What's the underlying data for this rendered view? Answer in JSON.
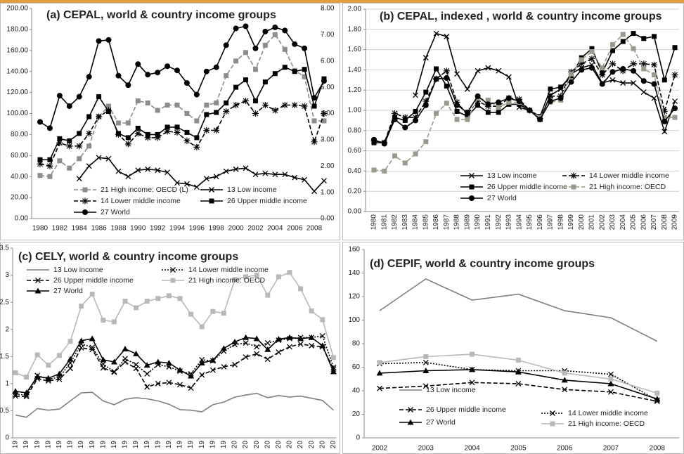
{
  "chart_data": [
    {
      "type": "line",
      "title": "(a) CEPAL, world & country income groups",
      "categories": [
        "1980",
        null,
        "1982",
        null,
        "1984",
        null,
        "1986",
        null,
        "1988",
        null,
        "1990",
        null,
        "1992",
        null,
        "1994",
        null,
        "1996",
        null,
        "1998",
        null,
        "2000",
        null,
        "2002",
        null,
        "2004",
        null,
        "2006",
        null,
        "2008",
        null
      ],
      "ylim": [
        0,
        200
      ],
      "yticks": [
        {
          "value": 0,
          "label": "0.00"
        },
        {
          "value": 20,
          "label": "20.00"
        },
        {
          "value": 40,
          "label": "40.00"
        },
        {
          "value": 60,
          "label": "60.00"
        },
        {
          "value": 80,
          "label": "80.00"
        },
        {
          "value": 100,
          "label": "100.00"
        },
        {
          "value": 120,
          "label": "120.00"
        },
        {
          "value": 140,
          "label": "140.00"
        },
        {
          "value": 160,
          "label": "160.00"
        },
        {
          "value": 180,
          "label": "180.00"
        },
        {
          "value": 200,
          "label": "200.00"
        }
      ],
      "y2lim": [
        0,
        8
      ],
      "y2ticks": [
        {
          "value": 0,
          "label": "0.00"
        },
        {
          "value": 1,
          "label": "1.00"
        },
        {
          "value": 2,
          "label": "2.00"
        },
        {
          "value": 3,
          "label": "3.00"
        },
        {
          "value": 4,
          "label": "4.00"
        },
        {
          "value": 5,
          "label": "5.00"
        },
        {
          "value": 6,
          "label": "6.00"
        },
        {
          "value": 7,
          "label": "7.00"
        },
        {
          "value": 8,
          "label": "8.00"
        }
      ],
      "grid": false,
      "series": [
        {
          "name": "21 High income: OECD (L)",
          "color": "#8c8c8c",
          "marker": "square",
          "dash": "dashed",
          "values": [
            41,
            40,
            55,
            48,
            57,
            69,
            97,
            107,
            91,
            91,
            112,
            110,
            103,
            108,
            108,
            100,
            93,
            108,
            110,
            136,
            150,
            158,
            142,
            165,
            175,
            161,
            141,
            135,
            93,
            93
          ]
        },
        {
          "name": "13 Low income",
          "color": "#000000",
          "marker": "x",
          "dash": "solid",
          "axis": "y2",
          "values": [
            null,
            null,
            null,
            null,
            1.52,
            2.0,
            2.32,
            2.28,
            1.8,
            1.6,
            1.84,
            1.88,
            1.84,
            1.76,
            1.36,
            1.32,
            1.2,
            1.52,
            1.6,
            1.8,
            1.88,
            1.92,
            1.68,
            1.72,
            1.68,
            1.68,
            1.56,
            1.48,
            1.04,
            1.44
          ]
        },
        {
          "name": "14 Lower middle income",
          "color": "#000000",
          "marker": "star",
          "dash": "dashed",
          "axis": "y2",
          "values": [
            2.08,
            2.0,
            2.88,
            2.76,
            2.76,
            3.24,
            3.88,
            4.12,
            3.2,
            2.84,
            3.24,
            3.08,
            3.08,
            3.32,
            3.28,
            2.96,
            2.72,
            3.36,
            3.36,
            4.08,
            4.32,
            4.48,
            4.0,
            4.32,
            4.12,
            4.32,
            4.32,
            4.28,
            2.92,
            4.0
          ]
        },
        {
          "name": "26 Upper middle income",
          "color": "#000000",
          "marker": "square",
          "dash": "solid",
          "axis": "y2",
          "values": [
            2.24,
            2.24,
            3.04,
            2.96,
            3.24,
            3.88,
            4.64,
            4.08,
            3.24,
            3.08,
            3.44,
            3.2,
            3.2,
            3.48,
            3.48,
            3.28,
            3.08,
            3.96,
            4.04,
            4.4,
            5.0,
            5.28,
            4.48,
            5.2,
            5.52,
            5.76,
            5.6,
            5.68,
            4.28,
            5.32
          ]
        },
        {
          "name": "27 World",
          "color": "#000000",
          "marker": "circle",
          "dash": "solid",
          "axis": "y2",
          "values": [
            3.68,
            3.44,
            4.68,
            4.28,
            4.64,
            5.4,
            6.76,
            6.8,
            5.44,
            5.08,
            5.88,
            5.48,
            5.56,
            5.8,
            5.64,
            5.16,
            4.72,
            5.6,
            5.76,
            6.6,
            7.24,
            7.32,
            6.48,
            7.12,
            7.28,
            7.16,
            6.64,
            6.48,
            4.6,
            5.24
          ]
        }
      ]
    },
    {
      "type": "line",
      "title": "(b) CEPAL, indexed , world & country income groups",
      "categories": [
        "1980",
        "1981",
        "1982",
        "1983",
        "1984",
        "1985",
        "1986",
        "1987",
        "1988",
        "1989",
        "1990",
        "1991",
        "1992",
        "1993",
        "1994",
        "1995",
        "1996",
        "1997",
        "1998",
        "1999",
        "2000",
        "2001",
        "2002",
        "2003",
        "2004",
        "2005",
        "2006",
        "2007",
        "2008",
        "2009"
      ],
      "ylim": [
        0,
        2
      ],
      "yticks": [
        {
          "value": 0,
          "label": "0.00"
        },
        {
          "value": 0.2,
          "label": "0.20"
        },
        {
          "value": 0.4,
          "label": "0.40"
        },
        {
          "value": 0.6,
          "label": "0.60"
        },
        {
          "value": 0.8,
          "label": "0.80"
        },
        {
          "value": 1,
          "label": "1.00"
        },
        {
          "value": 1.2,
          "label": "1.20"
        },
        {
          "value": 1.4,
          "label": "1.40"
        },
        {
          "value": 1.6,
          "label": "1.60"
        },
        {
          "value": 1.8,
          "label": "1.80"
        },
        {
          "value": 2,
          "label": "2.00"
        }
      ],
      "grid": true,
      "series": [
        {
          "name": "13 Low income",
          "color": "#000000",
          "marker": "x",
          "dash": "solid",
          "values": [
            null,
            null,
            null,
            null,
            1.15,
            1.52,
            1.76,
            1.73,
            1.36,
            1.21,
            1.39,
            1.42,
            1.39,
            1.33,
            1.03,
            1.0,
            0.91,
            1.15,
            1.21,
            1.36,
            1.42,
            1.45,
            1.27,
            1.3,
            1.27,
            1.27,
            1.18,
            1.12,
            0.79,
            1.09
          ]
        },
        {
          "name": "14 Lower middle income",
          "color": "#000000",
          "marker": "star",
          "dash": "dashed",
          "values": [
            0.7,
            0.68,
            0.97,
            0.93,
            0.93,
            1.09,
            1.31,
            1.39,
            1.08,
            0.96,
            1.09,
            1.04,
            1.04,
            1.12,
            1.11,
            1.0,
            0.92,
            1.14,
            1.14,
            1.38,
            1.46,
            1.51,
            1.35,
            1.46,
            1.39,
            1.46,
            1.46,
            1.45,
            0.99,
            1.35
          ]
        },
        {
          "name": "26 Upper middle income",
          "color": "#000000",
          "marker": "square",
          "dash": "solid",
          "values": [
            0.68,
            0.68,
            0.93,
            0.9,
            0.99,
            1.18,
            1.41,
            1.24,
            0.99,
            0.94,
            1.05,
            0.98,
            0.98,
            1.06,
            1.06,
            1.0,
            0.94,
            1.21,
            1.23,
            1.34,
            1.52,
            1.61,
            1.37,
            1.59,
            1.68,
            1.76,
            1.71,
            1.73,
            1.3,
            1.62
          ]
        },
        {
          "name": "21 High income: OECD",
          "color": "#9a9a8a",
          "marker": "square",
          "dash": "dashed",
          "values": [
            0.41,
            0.4,
            0.55,
            0.48,
            0.57,
            0.69,
            0.97,
            1.07,
            0.91,
            0.91,
            1.12,
            1.1,
            1.03,
            1.08,
            1.08,
            1.0,
            0.93,
            1.08,
            1.1,
            1.36,
            1.5,
            1.58,
            1.42,
            1.65,
            1.75,
            1.61,
            1.41,
            1.35,
            0.93,
            0.93
          ]
        },
        {
          "name": "27 World",
          "color": "#000000",
          "marker": "circle",
          "dash": "solid",
          "values": [
            0.71,
            0.67,
            0.91,
            0.83,
            0.9,
            1.05,
            1.31,
            1.32,
            1.05,
            0.98,
            1.14,
            1.06,
            1.08,
            1.12,
            1.09,
            1.0,
            0.91,
            1.09,
            1.12,
            1.28,
            1.4,
            1.42,
            1.26,
            1.38,
            1.41,
            1.39,
            1.29,
            1.26,
            0.89,
            1.02
          ]
        }
      ]
    },
    {
      "type": "line",
      "title": "(c) CELY, world & country income groups",
      "categories": [
        "19",
        "19",
        "19",
        "19",
        "19",
        "19",
        "19",
        "19",
        "19",
        "19",
        "19",
        "19",
        "19",
        "19",
        "19",
        "19",
        "19",
        "19",
        "19",
        "19",
        "20",
        "20",
        "20",
        "20",
        "20",
        "20",
        "20",
        "20",
        "20",
        "20"
      ],
      "ylim": [
        0,
        3.5
      ],
      "yticks": [
        0,
        0.5,
        1,
        1.5,
        2,
        2.5,
        3,
        3.5
      ],
      "grid": false,
      "series": [
        {
          "name": "13 Low income",
          "color": "#7f7f7f",
          "marker": "none",
          "dash": "solid",
          "values": [
            0.42,
            0.38,
            0.54,
            0.51,
            0.53,
            0.68,
            0.83,
            0.84,
            0.68,
            0.61,
            0.71,
            0.74,
            0.72,
            0.68,
            0.62,
            0.52,
            0.51,
            0.48,
            0.61,
            0.66,
            0.75,
            0.79,
            0.82,
            0.74,
            0.78,
            0.75,
            0.77,
            0.73,
            0.69,
            0.51
          ]
        },
        {
          "name": "14 Lower middle income",
          "color": "#000000",
          "marker": "x",
          "dash": "dotted",
          "values": [
            0.8,
            0.79,
            1.15,
            1.08,
            1.12,
            1.38,
            1.73,
            1.67,
            1.36,
            1.22,
            1.46,
            1.35,
            1.18,
            1.35,
            1.31,
            1.23,
            1.18,
            1.44,
            1.42,
            1.6,
            1.72,
            1.75,
            1.68,
            1.75,
            1.8,
            1.83,
            1.85,
            1.85,
            1.88,
            1.3
          ]
        },
        {
          "name": "26 Upper middle income",
          "color": "#000000",
          "marker": "x",
          "dash": "dashed",
          "values": [
            0.77,
            0.76,
            1.09,
            1.05,
            1.08,
            1.28,
            1.66,
            1.63,
            1.29,
            1.21,
            1.4,
            1.28,
            0.94,
            1.0,
            1.02,
            0.98,
            0.92,
            1.16,
            1.25,
            1.31,
            1.35,
            1.49,
            1.55,
            1.45,
            1.58,
            1.68,
            1.73,
            1.7,
            1.68,
            1.27
          ]
        },
        {
          "name": "21 High income: OECD",
          "color": "#b8b8b8",
          "marker": "square",
          "dash": "solid",
          "values": [
            1.2,
            1.12,
            1.53,
            1.34,
            1.52,
            1.78,
            2.43,
            2.65,
            2.17,
            2.14,
            2.52,
            2.4,
            2.52,
            2.57,
            2.62,
            2.57,
            2.28,
            2.05,
            2.33,
            2.3,
            2.92,
            2.97,
            3.0,
            2.63,
            2.97,
            3.05,
            2.75,
            2.34,
            2.18,
            1.48
          ]
        },
        {
          "name": "27 World",
          "color": "#000000",
          "marker": "triangle",
          "dash": "solid",
          "values": [
            0.86,
            0.83,
            1.13,
            1.1,
            1.18,
            1.45,
            1.79,
            1.83,
            1.44,
            1.4,
            1.64,
            1.55,
            1.34,
            1.4,
            1.38,
            1.25,
            1.14,
            1.38,
            1.43,
            1.65,
            1.77,
            1.85,
            1.83,
            1.63,
            1.82,
            1.85,
            1.83,
            1.85,
            1.7,
            1.22
          ]
        }
      ]
    },
    {
      "type": "line",
      "title": "(d) CEPIF,  world & country income groups",
      "categories": [
        "2002",
        "2003",
        "2004",
        "2005",
        "2006",
        "2007",
        "2008"
      ],
      "ylim": [
        0,
        160
      ],
      "yticks": [
        0,
        20,
        40,
        60,
        80,
        100,
        120,
        140,
        160
      ],
      "grid": false,
      "series": [
        {
          "name": "13 Low income",
          "color": "#7f7f7f",
          "marker": "none",
          "dash": "solid",
          "values": [
            108,
            135,
            117,
            122,
            108,
            102,
            82
          ]
        },
        {
          "name": "26 Upper middle income",
          "color": "#000000",
          "marker": "x",
          "dash": "dashed",
          "values": [
            42,
            44,
            47,
            46,
            41,
            39,
            31
          ]
        },
        {
          "name": "27 World",
          "color": "#000000",
          "marker": "triangle",
          "dash": "solid",
          "values": [
            55,
            57,
            58,
            56,
            49,
            46,
            33
          ]
        },
        {
          "name": "14 Lower middle income",
          "color": "#000000",
          "marker": "x",
          "dash": "dotted",
          "values": [
            63,
            64,
            58,
            57,
            57,
            54,
            32
          ]
        },
        {
          "name": "21 High income: OECD",
          "color": "#b8b8b8",
          "marker": "square",
          "dash": "solid",
          "values": [
            64,
            69,
            71,
            66,
            55,
            50,
            38
          ]
        }
      ]
    }
  ]
}
